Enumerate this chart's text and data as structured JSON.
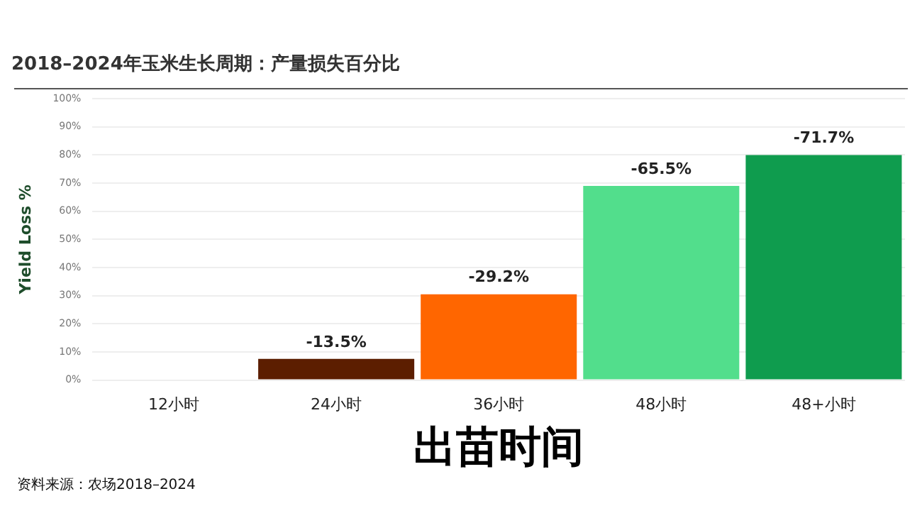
{
  "chart_data": {
    "type": "bar",
    "title": "2018–2024年玉米生长周期：产量损失百分比",
    "xlabel": "出苗时间",
    "ylabel": "Yield Loss %",
    "categories": [
      "12小时",
      "24小时",
      "36小时",
      "48小时",
      "48+小时"
    ],
    "values": [
      0,
      7.5,
      30.5,
      69,
      80
    ],
    "colors": [
      "#e0e0e0",
      "#5c1e00",
      "#ff6600",
      "#52de8c",
      "#0f9c4e"
    ],
    "ylim": [
      0,
      100
    ],
    "yticks": [
      {
        "value": 0,
        "label": "0%"
      },
      {
        "value": 10,
        "label": "10%"
      },
      {
        "value": 20,
        "label": "20%"
      },
      {
        "value": 30,
        "label": "30%"
      },
      {
        "value": 40,
        "label": "40%"
      },
      {
        "value": 50,
        "label": "50%"
      },
      {
        "value": 60,
        "label": "60%"
      },
      {
        "value": 70,
        "label": "70%"
      },
      {
        "value": 80,
        "label": "80%"
      },
      {
        "value": 90,
        "label": "90%"
      },
      {
        "value": 100,
        "label": "100%"
      }
    ],
    "grid": "y",
    "legend": false,
    "annotations": [
      {
        "text": "-13.5%",
        "x": "24小时",
        "y": 7.5
      },
      {
        "text": "-29.2%",
        "x": "36小时",
        "y": 30.5
      },
      {
        "text": "-65.5%",
        "x": "48小时",
        "y": 69
      },
      {
        "text": "-71.7%",
        "x": "48+小时",
        "y": 80
      },
      "资料来源：农场2018–2024"
    ]
  }
}
